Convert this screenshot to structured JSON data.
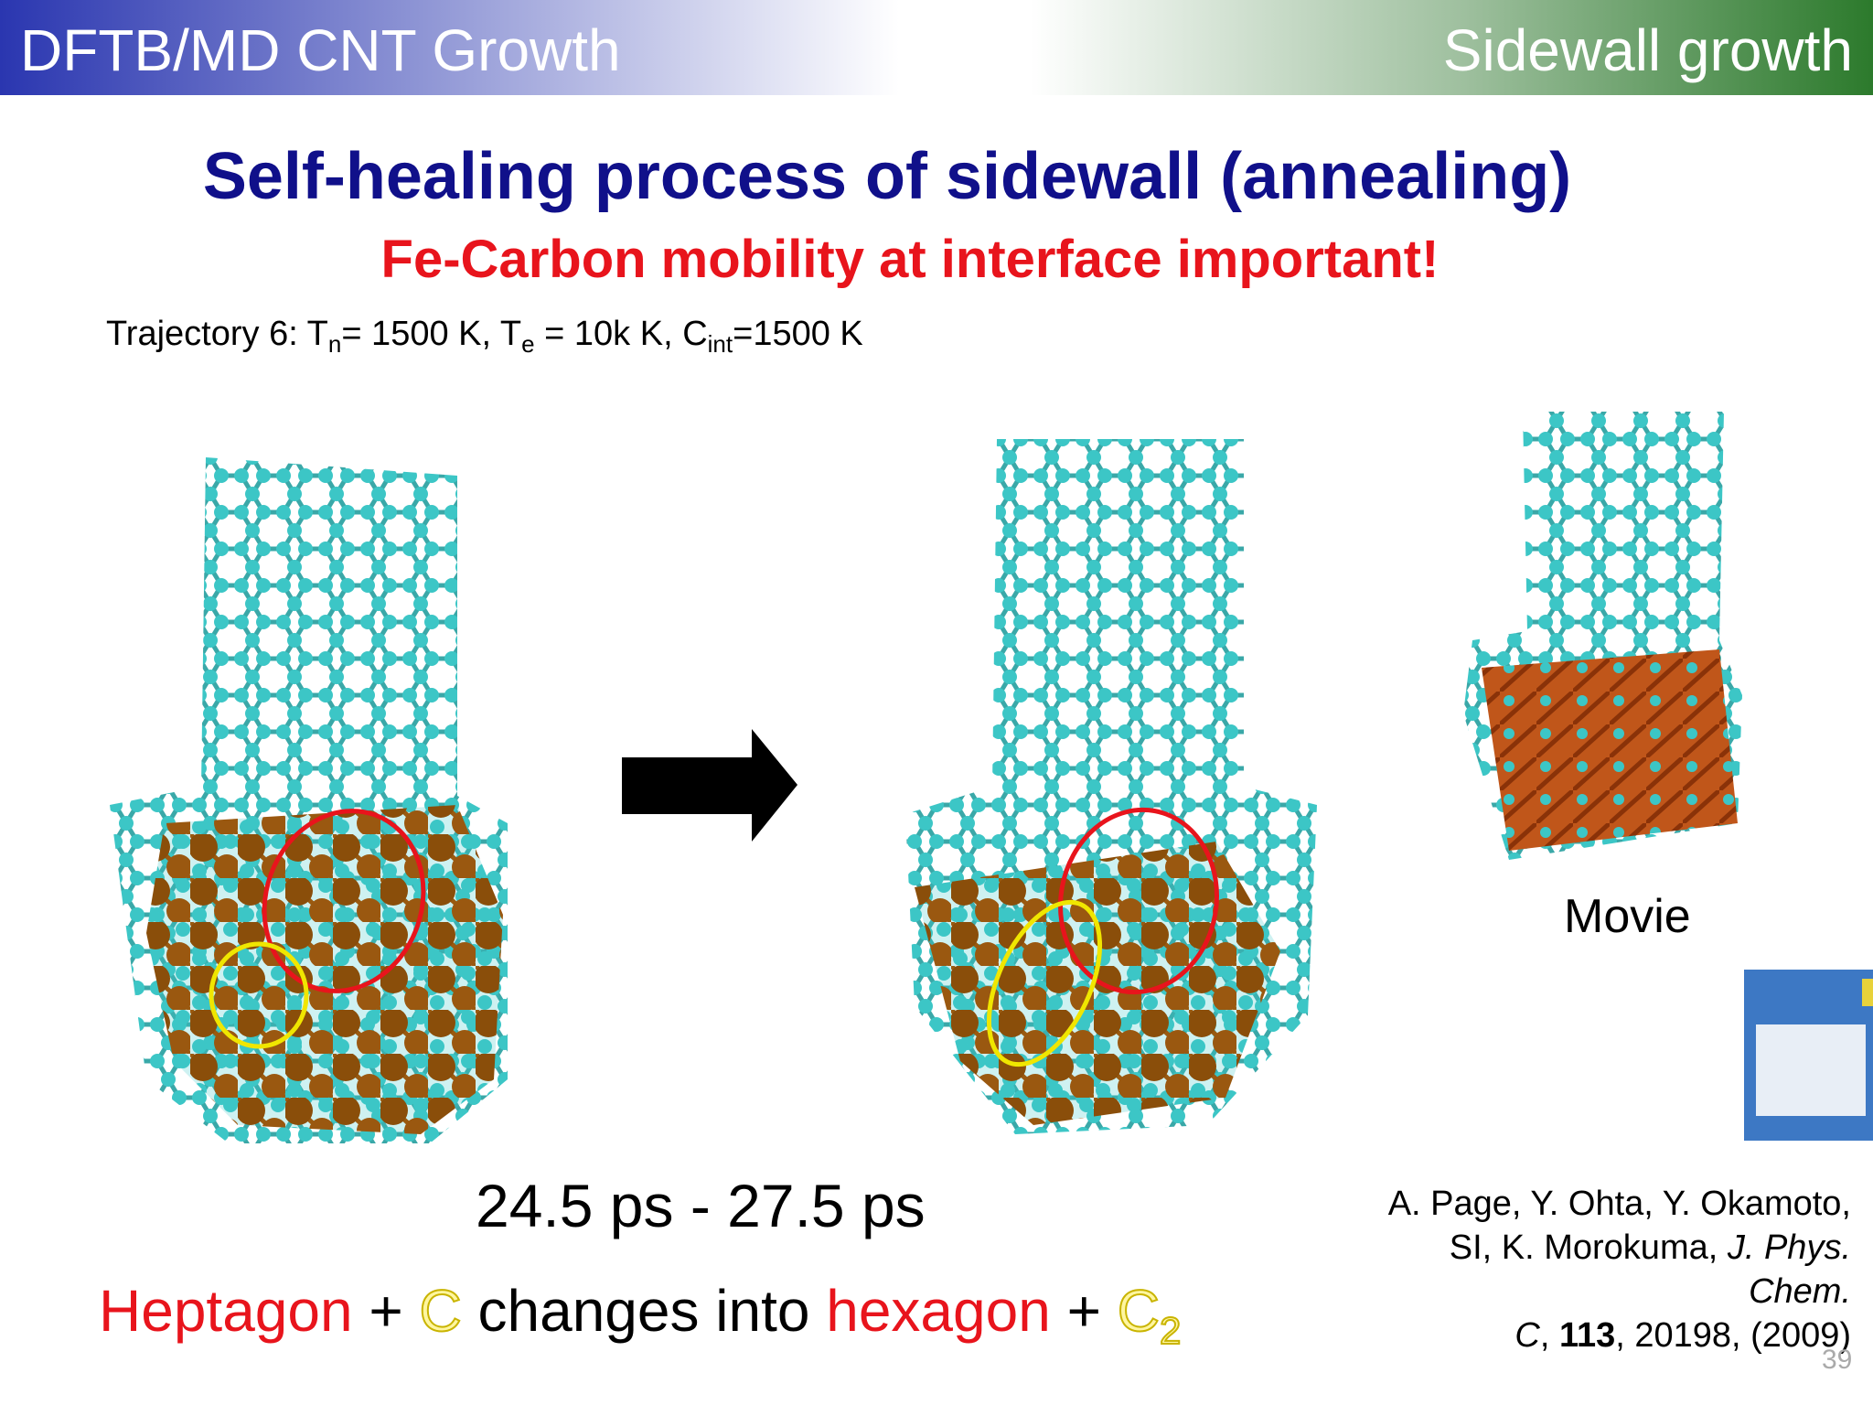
{
  "header": {
    "left": "DFTB/MD CNT Growth",
    "right": "Sidewall growth"
  },
  "title": "Self-healing process of sidewall (annealing)",
  "subtitle": "Fe-Carbon mobility at interface important!",
  "trajectory": [
    "Trajectory 6: T",
    "n",
    "= 1500 K, T",
    "e",
    " = 10k K, C",
    "int",
    "=1500 K"
  ],
  "time_range": "24.5 ps - 27.5 ps",
  "movie": "Movie",
  "caption": [
    "Heptagon",
    " + ",
    "C",
    " changes into ",
    "hexagon",
    " + ",
    "C",
    "2"
  ],
  "reference": [
    "A. Page, Y. Ohta, Y. Okamoto, SI, K. Morokuma, ",
    "J. Phys. Chem.",
    " C",
    ", ",
    "113",
    ", 20198, (2009)"
  ],
  "page_number": "39"
}
